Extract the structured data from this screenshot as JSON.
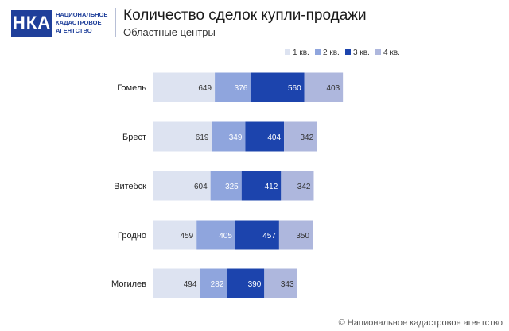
{
  "brand": {
    "logo_mark": "НКА",
    "logo_lines": [
      "НАЦИОНАЛЬНОЕ",
      "КАДАСТРОВОЕ",
      "АГЕНТСТВО"
    ]
  },
  "header": {
    "title": "Количество сделок купли-продажи",
    "subtitle": "Областные центры"
  },
  "footer": {
    "credit": "© Национальное кадастровое агентство"
  },
  "colors": {
    "q1": "#dde3f1",
    "q2": "#8fa5dd",
    "q3": "#1c44ad",
    "q4": "#aeb7dd"
  },
  "chart_data": {
    "type": "bar",
    "orientation": "horizontal",
    "stacked": true,
    "categories": [
      "Гомель",
      "Брест",
      "Витебск",
      "Гродно",
      "Могилев"
    ],
    "series": [
      {
        "name": "1 кв.",
        "values": [
          649,
          619,
          604,
          459,
          494
        ]
      },
      {
        "name": "2 кв.",
        "values": [
          376,
          349,
          325,
          405,
          282
        ]
      },
      {
        "name": "3 кв.",
        "values": [
          560,
          404,
          412,
          457,
          390
        ]
      },
      {
        "name": "4 кв.",
        "values": [
          403,
          342,
          342,
          350,
          343
        ]
      }
    ],
    "legend_position": "top-right",
    "grid": false
  }
}
